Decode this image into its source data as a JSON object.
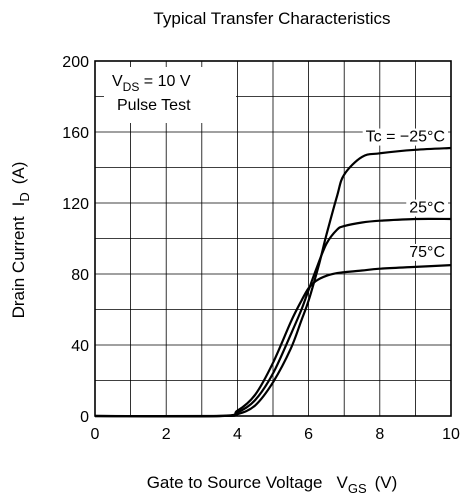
{
  "chart_data": {
    "type": "line",
    "title": "Typical Transfer Characteristics",
    "xlabel": {
      "main": "Gate to Source Voltage",
      "sym": "V",
      "sub": "GS",
      "unit": "(V)"
    },
    "ylabel": {
      "main": "Drain Current",
      "sym": "I",
      "sub": "D",
      "unit": "(A)"
    },
    "xlim": [
      0,
      10
    ],
    "ylim": [
      0,
      200
    ],
    "x_ticks": [
      "0",
      "2",
      "4",
      "6",
      "8",
      "10"
    ],
    "y_ticks": [
      "0",
      "40",
      "80",
      "120",
      "160",
      "200"
    ],
    "grid": true,
    "conditions": {
      "line1_sym": "V",
      "line1_sub": "DS",
      "line1_rest": " = 10 V",
      "line2": "Pulse Test"
    },
    "series": [
      {
        "name": "Tc = −25°C",
        "x": [
          3.5,
          4.0,
          4.5,
          5.0,
          5.5,
          5.8,
          6.0,
          6.3,
          6.5,
          6.8,
          7.0,
          7.5,
          8.0,
          9.0,
          10.0
        ],
        "y": [
          0,
          1,
          6,
          19,
          38,
          54,
          65,
          86,
          102,
          124,
          136,
          146,
          148,
          150,
          151
        ]
      },
      {
        "name": "25°C",
        "x": [
          3.5,
          4.0,
          4.5,
          5.0,
          5.5,
          5.8,
          6.0,
          6.2,
          6.5,
          6.8,
          7.0,
          7.5,
          8.0,
          9.0,
          10.0
        ],
        "y": [
          0,
          2,
          9,
          24,
          46,
          60,
          71,
          82,
          97,
          105,
          107,
          109,
          110,
          111,
          111
        ]
      },
      {
        "name": "75°C",
        "x": [
          3.5,
          4.0,
          4.5,
          5.0,
          5.5,
          5.8,
          6.0,
          6.2,
          6.5,
          6.8,
          7.0,
          7.5,
          8.0,
          9.0,
          10.0
        ],
        "y": [
          0,
          3,
          12,
          30,
          53,
          65,
          72,
          76,
          79,
          80.5,
          81,
          82,
          83,
          84,
          85
        ]
      }
    ]
  }
}
